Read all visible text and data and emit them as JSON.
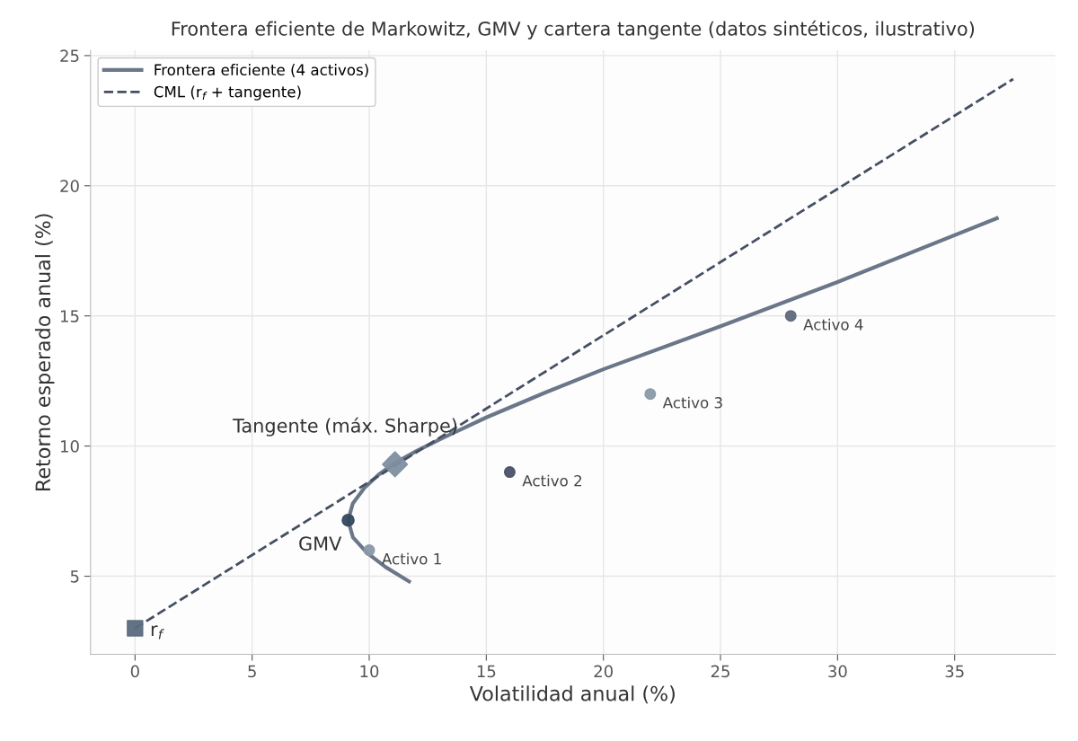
{
  "chart_data": {
    "type": "line",
    "title": "Frontera eficiente de Markowitz, GMV y cartera tangente (datos sintéticos, ilustrativo)",
    "xlabel": "Volatilidad anual (%)",
    "ylabel": "Retorno esperado anual (%)",
    "xlim": [
      -1.9,
      39.3
    ],
    "ylim": [
      2.0,
      25.2
    ],
    "xticks": [
      0,
      5,
      10,
      15,
      20,
      25,
      30,
      35
    ],
    "yticks": [
      5,
      10,
      15,
      20,
      25
    ],
    "grid": true,
    "legend": "top left",
    "series": [
      {
        "name": "Frontera eficiente (4 activos)",
        "color": "#6b7789",
        "line_style": "solid",
        "marker": "none",
        "x": [
          11.7,
          10.7,
          9.9,
          9.3,
          9.1,
          9.3,
          9.8,
          10.4,
          11.1,
          12,
          13,
          15,
          17.5,
          20,
          25,
          30,
          36.8
        ],
        "values": [
          4.8,
          5.35,
          5.9,
          6.5,
          7.15,
          7.8,
          8.4,
          8.9,
          9.35,
          9.8,
          10.25,
          11.1,
          12.05,
          12.95,
          14.6,
          16.3,
          18.75
        ]
      },
      {
        "name": "CML (r$_{f}$ + tangente)",
        "color": "#454f63",
        "line_style": "dashed",
        "marker": "none",
        "x": [
          0,
          37.5
        ],
        "values": [
          3,
          24.1
        ]
      },
      {
        "type": "scatter",
        "marker": "circle",
        "x": [
          10,
          16,
          22,
          28
        ],
        "values": [
          6,
          9,
          12,
          15
        ],
        "colors": [
          "#8a98a8",
          "#4a5068",
          "#8a9aa6",
          "#5e6a7a"
        ]
      },
      {
        "type": "scatter",
        "marker": "circle",
        "x": [
          9.1
        ],
        "values": [
          7.15
        ],
        "colors": [
          "#34495e"
        ]
      },
      {
        "type": "scatter",
        "marker": "diamond",
        "x": [
          11.1
        ],
        "values": [
          9.3
        ],
        "colors": [
          "#7f8fa0"
        ]
      },
      {
        "type": "scatter",
        "marker": "square",
        "x": [
          0
        ],
        "values": [
          3
        ],
        "colors": [
          "#5b6b7d"
        ]
      }
    ],
    "annotations": [
      {
        "text": "Activo 1",
        "x": 10,
        "y": 6
      },
      {
        "text": "Activo 2",
        "x": 16,
        "y": 9
      },
      {
        "text": "Activo 3",
        "x": 22,
        "y": 12
      },
      {
        "text": "Activo 4",
        "x": 28,
        "y": 15
      },
      {
        "text": "GMV",
        "x": 9.1,
        "y": 7.15
      },
      {
        "text": "Tangente (máx. Sharpe)",
        "x": 11.1,
        "y": 9.3
      },
      {
        "text": "r$_{f}$",
        "x": 0,
        "y": 3
      }
    ]
  }
}
